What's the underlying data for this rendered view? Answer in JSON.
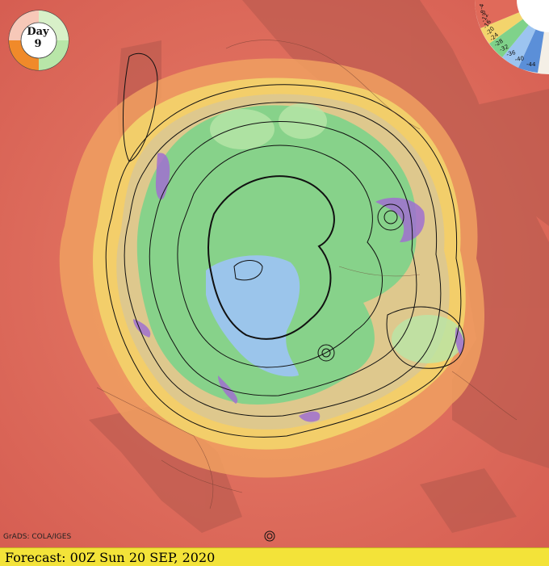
{
  "badge": {
    "day_label": "Day",
    "day_number": "9"
  },
  "scale": {
    "labels": [
      "-4",
      "-8",
      "-12",
      "-16",
      "-20",
      "-24",
      "-28",
      "-32",
      "-36",
      "-40",
      "-44"
    ]
  },
  "credit": "GrADS: COLA/IGES",
  "footer": {
    "forecast_text": "Forecast: 00Z Sun 20 SEP, 2020"
  },
  "colors": {
    "warm_background": "#e06a5a",
    "orange_band": "#f0a060",
    "yellow_band": "#f3d46c",
    "green_core": "#7fd28a",
    "cold_core": "#9cc4f0",
    "purple_edge": "#a070d0",
    "footer_bg": "#f3e339"
  }
}
